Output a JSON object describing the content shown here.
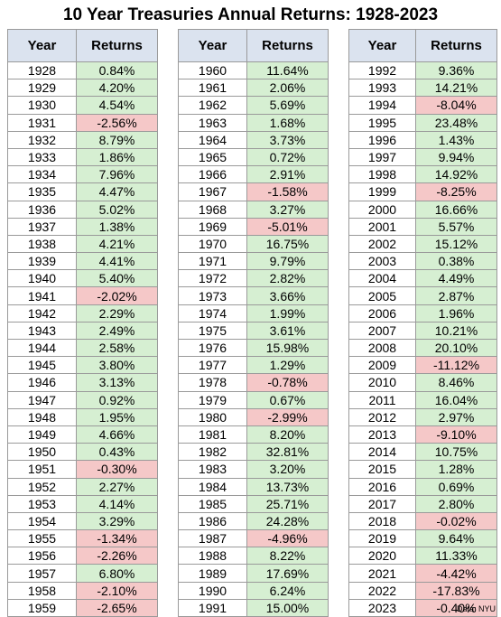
{
  "chart_data": {
    "type": "table",
    "title": "10 Year Treasuries Annual Returns: 1928-2023",
    "columns": [
      "Year",
      "Returns"
    ],
    "source": "Data: NYU",
    "colors": {
      "header": "#dbe3ef",
      "positive": "#d6efd2",
      "negative": "#f5c8c8"
    },
    "rows": [
      [
        "1928",
        "0.84%"
      ],
      [
        "1929",
        "4.20%"
      ],
      [
        "1930",
        "4.54%"
      ],
      [
        "1931",
        "-2.56%"
      ],
      [
        "1932",
        "8.79%"
      ],
      [
        "1933",
        "1.86%"
      ],
      [
        "1934",
        "7.96%"
      ],
      [
        "1935",
        "4.47%"
      ],
      [
        "1936",
        "5.02%"
      ],
      [
        "1937",
        "1.38%"
      ],
      [
        "1938",
        "4.21%"
      ],
      [
        "1939",
        "4.41%"
      ],
      [
        "1940",
        "5.40%"
      ],
      [
        "1941",
        "-2.02%"
      ],
      [
        "1942",
        "2.29%"
      ],
      [
        "1943",
        "2.49%"
      ],
      [
        "1944",
        "2.58%"
      ],
      [
        "1945",
        "3.80%"
      ],
      [
        "1946",
        "3.13%"
      ],
      [
        "1947",
        "0.92%"
      ],
      [
        "1948",
        "1.95%"
      ],
      [
        "1949",
        "4.66%"
      ],
      [
        "1950",
        "0.43%"
      ],
      [
        "1951",
        "-0.30%"
      ],
      [
        "1952",
        "2.27%"
      ],
      [
        "1953",
        "4.14%"
      ],
      [
        "1954",
        "3.29%"
      ],
      [
        "1955",
        "-1.34%"
      ],
      [
        "1956",
        "-2.26%"
      ],
      [
        "1957",
        "6.80%"
      ],
      [
        "1958",
        "-2.10%"
      ],
      [
        "1959",
        "-2.65%"
      ],
      [
        "1960",
        "11.64%"
      ],
      [
        "1961",
        "2.06%"
      ],
      [
        "1962",
        "5.69%"
      ],
      [
        "1963",
        "1.68%"
      ],
      [
        "1964",
        "3.73%"
      ],
      [
        "1965",
        "0.72%"
      ],
      [
        "1966",
        "2.91%"
      ],
      [
        "1967",
        "-1.58%"
      ],
      [
        "1968",
        "3.27%"
      ],
      [
        "1969",
        "-5.01%"
      ],
      [
        "1970",
        "16.75%"
      ],
      [
        "1971",
        "9.79%"
      ],
      [
        "1972",
        "2.82%"
      ],
      [
        "1973",
        "3.66%"
      ],
      [
        "1974",
        "1.99%"
      ],
      [
        "1975",
        "3.61%"
      ],
      [
        "1976",
        "15.98%"
      ],
      [
        "1977",
        "1.29%"
      ],
      [
        "1978",
        "-0.78%"
      ],
      [
        "1979",
        "0.67%"
      ],
      [
        "1980",
        "-2.99%"
      ],
      [
        "1981",
        "8.20%"
      ],
      [
        "1982",
        "32.81%"
      ],
      [
        "1983",
        "3.20%"
      ],
      [
        "1984",
        "13.73%"
      ],
      [
        "1985",
        "25.71%"
      ],
      [
        "1986",
        "24.28%"
      ],
      [
        "1987",
        "-4.96%"
      ],
      [
        "1988",
        "8.22%"
      ],
      [
        "1989",
        "17.69%"
      ],
      [
        "1990",
        "6.24%"
      ],
      [
        "1991",
        "15.00%"
      ],
      [
        "1992",
        "9.36%"
      ],
      [
        "1993",
        "14.21%"
      ],
      [
        "1994",
        "-8.04%"
      ],
      [
        "1995",
        "23.48%"
      ],
      [
        "1996",
        "1.43%"
      ],
      [
        "1997",
        "9.94%"
      ],
      [
        "1998",
        "14.92%"
      ],
      [
        "1999",
        "-8.25%"
      ],
      [
        "2000",
        "16.66%"
      ],
      [
        "2001",
        "5.57%"
      ],
      [
        "2002",
        "15.12%"
      ],
      [
        "2003",
        "0.38%"
      ],
      [
        "2004",
        "4.49%"
      ],
      [
        "2005",
        "2.87%"
      ],
      [
        "2006",
        "1.96%"
      ],
      [
        "2007",
        "10.21%"
      ],
      [
        "2008",
        "20.10%"
      ],
      [
        "2009",
        "-11.12%"
      ],
      [
        "2010",
        "8.46%"
      ],
      [
        "2011",
        "16.04%"
      ],
      [
        "2012",
        "2.97%"
      ],
      [
        "2013",
        "-9.10%"
      ],
      [
        "2014",
        "10.75%"
      ],
      [
        "2015",
        "1.28%"
      ],
      [
        "2016",
        "0.69%"
      ],
      [
        "2017",
        "2.80%"
      ],
      [
        "2018",
        "-0.02%"
      ],
      [
        "2019",
        "9.64%"
      ],
      [
        "2020",
        "11.33%"
      ],
      [
        "2021",
        "-4.42%"
      ],
      [
        "2022",
        "-17.83%"
      ],
      [
        "2023",
        "-0.40%"
      ]
    ]
  }
}
